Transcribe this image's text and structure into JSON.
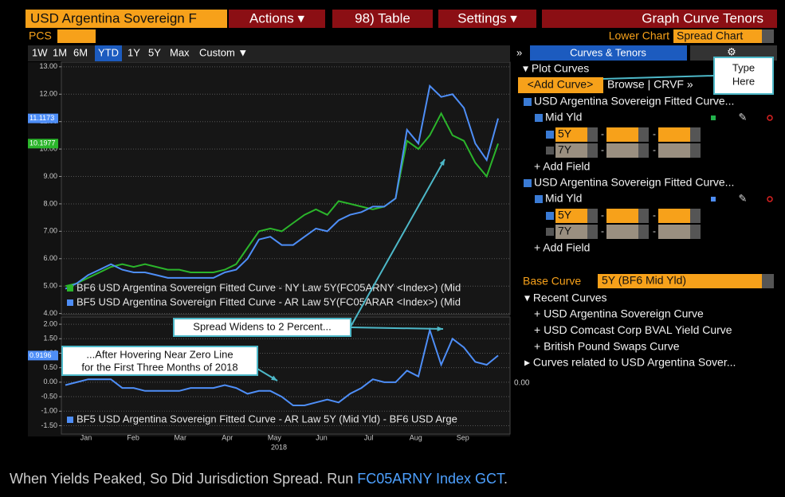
{
  "toolbar": {
    "security": "USD Argentina Sovereign F",
    "menus": [
      "Actions ▾",
      "98) Table",
      "Settings ▾"
    ],
    "graph_title": "Graph Curve Tenors"
  },
  "row2": {
    "pcs": "PCS",
    "lower_chart_label": "Lower Chart",
    "lower_chart_value": "Spread Chart"
  },
  "ranges": [
    "1W",
    "1M",
    "6M",
    "YTD",
    "1Y",
    "5Y",
    "Max",
    "Custom ▼"
  ],
  "selected_range_index": 3,
  "panel": {
    "expand": "»",
    "tab": "Curves & Tenors",
    "plot_curves": "▾ Plot Curves",
    "add_curve": "<Add Curve>",
    "browse": "Browse | CRVF »",
    "type_here": [
      "Type",
      "Here"
    ],
    "curves": [
      {
        "name": "USD Argentina Sovereign Fitted Curve...",
        "field": "Mid Yld",
        "color": "#22b14c",
        "tenors": [
          {
            "label": "5Y",
            "checked": true
          },
          {
            "label": "7Y",
            "checked": false
          }
        ],
        "add_field": "+ Add Field"
      },
      {
        "name": "USD Argentina Sovereign Fitted Curve...",
        "field": "Mid Yld",
        "color": "#4e8ef7",
        "tenors": [
          {
            "label": "5Y",
            "checked": true
          },
          {
            "label": "7Y",
            "checked": false
          }
        ],
        "add_field": "+ Add Field"
      }
    ],
    "base_curve_label": "Base Curve",
    "base_curve": "5Y (BF6 Mid Yld)",
    "recent_title": "▾ Recent Curves",
    "recent": [
      "+ USD Argentina Sovereign Curve",
      "+ USD Comcast Corp BVAL Yield Curve",
      "+ British Pound Swaps Curve"
    ],
    "related": "▸ Curves related to USD Argentina Sover..."
  },
  "upper_chart": {
    "ylim": [
      3.96,
      13.17
    ],
    "yticks": [
      {
        "value": 13,
        "label": "13.00"
      },
      {
        "value": 12,
        "label": "12.00"
      },
      {
        "value": 11,
        "label": "11.00"
      },
      {
        "value": 10,
        "label": "10.00"
      },
      {
        "value": 9,
        "label": "9.00"
      },
      {
        "value": 8,
        "label": "8.00"
      },
      {
        "value": 7,
        "label": "7.00"
      },
      {
        "value": 6,
        "label": "6.00"
      },
      {
        "value": 5,
        "label": "5.00"
      },
      {
        "value": 4,
        "label": "4.00"
      }
    ],
    "series": [
      {
        "name": "BF6 USD Argentina Sovereign Fitted Curve - NY Law 5Y(FC05ARNY <Index>) (Mid",
        "color": "#2bb52b",
        "values": [
          5.0,
          5.1,
          5.3,
          5.5,
          5.7,
          5.8,
          5.7,
          5.8,
          5.7,
          5.6,
          5.6,
          5.5,
          5.5,
          5.5,
          5.6,
          5.8,
          6.4,
          7.0,
          7.1,
          7.0,
          7.3,
          7.6,
          7.8,
          7.6,
          8.1,
          8.0,
          7.9,
          7.8,
          7.9,
          8.2,
          10.3,
          10.0,
          10.5,
          11.3,
          10.5,
          10.3,
          9.5,
          9.0,
          10.1977
        ],
        "value_label": "10.1977"
      },
      {
        "name": "BF5 USD Argentina Sovereign Fitted Curve - AR Law 5Y(FC05ARAR <Index>) (Mid",
        "color": "#4e8ef7",
        "values": [
          4.9,
          5.1,
          5.4,
          5.6,
          5.8,
          5.6,
          5.5,
          5.5,
          5.4,
          5.3,
          5.3,
          5.3,
          5.3,
          5.3,
          5.5,
          5.6,
          6.0,
          6.7,
          6.8,
          6.5,
          6.5,
          6.8,
          7.1,
          7.0,
          7.4,
          7.6,
          7.7,
          7.9,
          7.9,
          8.2,
          10.7,
          10.2,
          12.3,
          11.9,
          12.0,
          11.5,
          10.2,
          9.6,
          11.1173
        ],
        "value_label": "11.1173"
      }
    ]
  },
  "lower_chart": {
    "ylim": [
      -1.79,
      2.25
    ],
    "yticks": [
      {
        "value": 2,
        "label": "2.00"
      },
      {
        "value": 1.5,
        "label": "1.50"
      },
      {
        "value": 1,
        "label": "1.00"
      },
      {
        "value": 0.5,
        "label": "0.50"
      },
      {
        "value": 0,
        "label": "0.00"
      },
      {
        "value": -0.5,
        "label": "-0.50"
      },
      {
        "value": -1,
        "label": "-1.00"
      },
      {
        "value": -1.5,
        "label": "-1.50"
      }
    ],
    "series": [
      {
        "name": "BF5 USD Argentina Sovereign Fitted Curve - AR Law 5Y (Mid Yld) - BF6 USD Arge",
        "color": "#4e8ef7",
        "values": [
          -0.1,
          0,
          0.1,
          0.1,
          0.1,
          -0.2,
          -0.2,
          -0.3,
          -0.3,
          -0.3,
          -0.3,
          -0.2,
          -0.2,
          -0.2,
          -0.1,
          -0.2,
          -0.4,
          -0.3,
          -0.3,
          -0.5,
          -0.8,
          -0.8,
          -0.7,
          -0.6,
          -0.7,
          -0.4,
          -0.2,
          0.1,
          0,
          0,
          0.4,
          0.2,
          1.8,
          0.6,
          1.5,
          1.2,
          0.7,
          0.6,
          0.9196
        ],
        "value_label": "0.9196"
      }
    ],
    "right_label": "0.00"
  },
  "xaxis": {
    "categories": [
      "Jan",
      "Feb",
      "Mar",
      "Apr",
      "May",
      "Jun",
      "Jul",
      "Aug",
      "Sep"
    ],
    "year": "2018"
  },
  "annotations": [
    [
      "Spread Widens to 2 Percent..."
    ],
    [
      "...After Hovering Near Zero Line",
      "for the First Three Months of 2018"
    ]
  ],
  "caption": {
    "text": "When Yields Peaked, So Did Jurisdiction Spread. Run ",
    "link": "FC05ARNY Index GCT",
    "end": "."
  }
}
